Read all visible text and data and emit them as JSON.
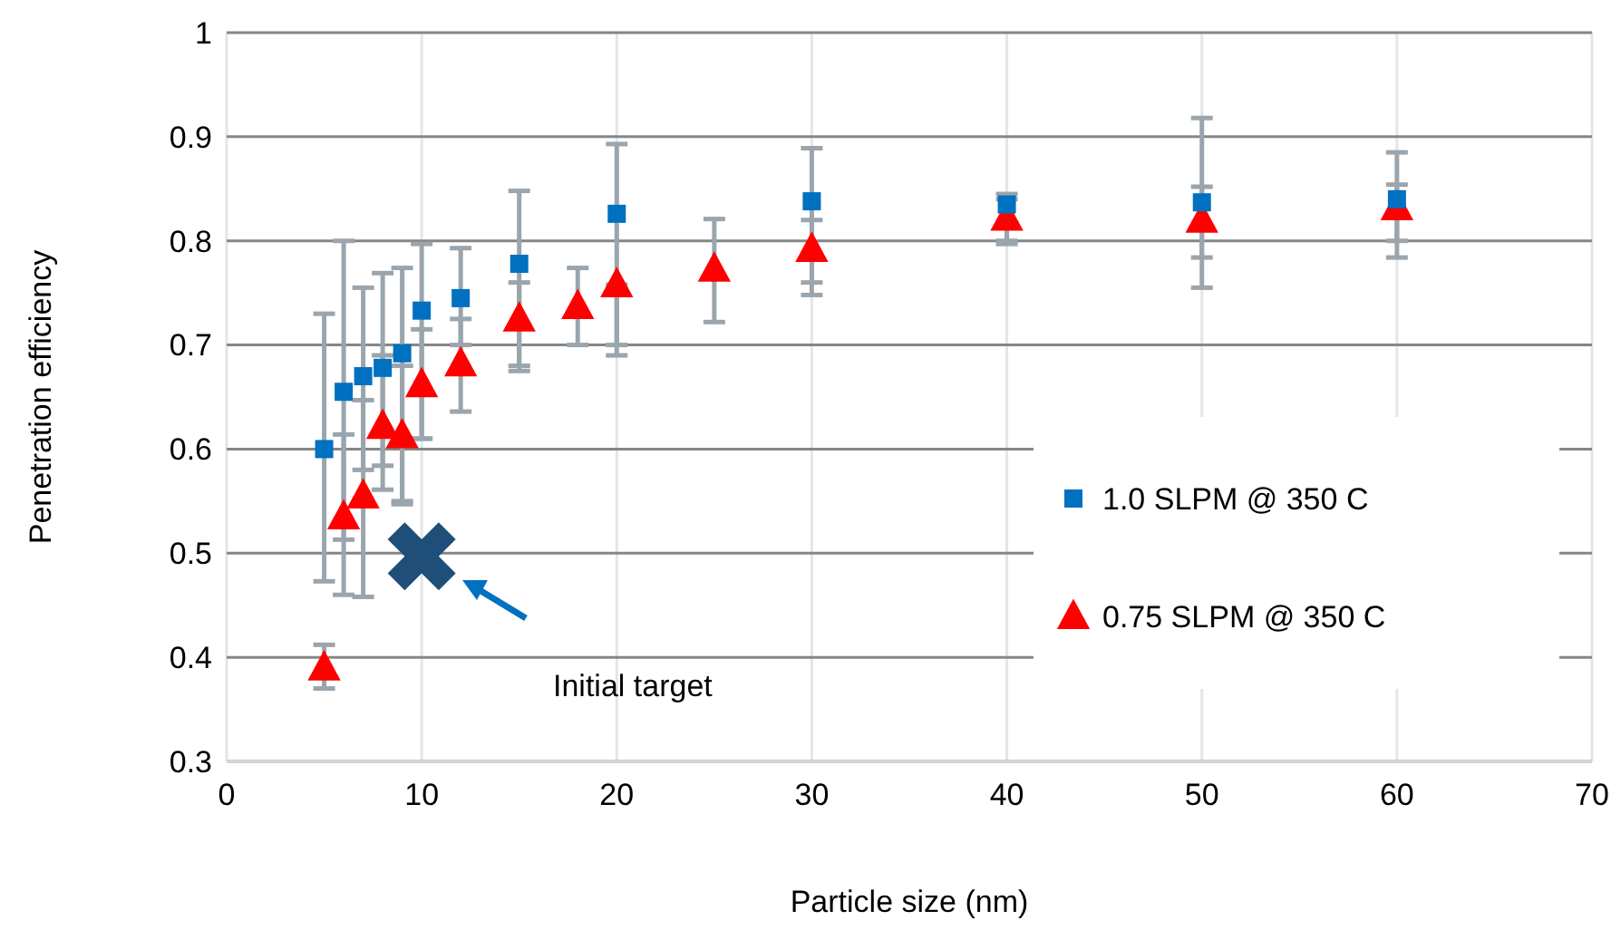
{
  "chart_data": {
    "type": "scatter",
    "xlabel": "Particle size (nm)",
    "ylabel": "Penetration efficiency",
    "xlim": [
      0,
      70
    ],
    "xticks": [
      0,
      10,
      20,
      30,
      40,
      50,
      60,
      70
    ],
    "ylim": [
      0.3,
      1
    ],
    "yticks": [
      {
        "value": 0.3,
        "label": "0.3"
      },
      {
        "value": 0.4,
        "label": "0.4"
      },
      {
        "value": 0.5,
        "label": "0.5"
      },
      {
        "value": 0.6,
        "label": "0.6"
      },
      {
        "value": 0.7,
        "label": "0.7"
      },
      {
        "value": 0.8,
        "label": "0.8"
      },
      {
        "value": 0.9,
        "label": "0.9"
      },
      {
        "value": 1,
        "label": "1"
      }
    ],
    "grid": true,
    "legend": "right",
    "series": [
      {
        "name": "1.0 SLPM @ 350 C",
        "color": "#0070c0",
        "marker": "square",
        "x": [
          5,
          6,
          7,
          8,
          9,
          10,
          12,
          15,
          20,
          30,
          40,
          50,
          60
        ],
        "values": [
          0.6,
          0.655,
          0.67,
          0.678,
          0.692,
          0.733,
          0.745,
          0.778,
          0.826,
          0.838,
          0.835,
          0.837,
          0.84
        ],
        "errors": [
          [
            0.473,
            0.73
          ],
          [
            0.46,
            0.8
          ],
          [
            0.58,
            0.755
          ],
          [
            0.584,
            0.769
          ],
          [
            0.547,
            0.774
          ],
          [
            0.61,
            0.797
          ],
          [
            0.7,
            0.793
          ],
          [
            0.675,
            0.848
          ],
          [
            0.69,
            0.893
          ],
          [
            0.748,
            0.889
          ],
          [
            0.8,
            0.845
          ],
          [
            0.755,
            0.918
          ],
          [
            0.784,
            0.885
          ]
        ]
      },
      {
        "name": "0.75 SLPM @ 350 C",
        "color": "#ff0000",
        "marker": "triangle",
        "x": [
          5,
          6,
          7,
          8,
          9,
          10,
          12,
          15,
          18,
          20,
          25,
          30,
          40,
          50,
          60
        ],
        "values": [
          0.39,
          0.535,
          0.555,
          0.622,
          0.613,
          0.662,
          0.682,
          0.725,
          0.737,
          0.758,
          0.773,
          0.792,
          0.822,
          0.82,
          0.832
        ],
        "errors": [
          [
            0.37,
            0.412
          ],
          [
            0.513,
            0.614
          ],
          [
            0.458,
            0.647
          ],
          [
            0.561,
            0.69
          ],
          [
            0.55,
            0.68
          ],
          [
            0.61,
            0.715
          ],
          [
            0.636,
            0.725
          ],
          [
            0.68,
            0.76
          ],
          [
            0.7,
            0.774
          ],
          [
            0.7,
            0.758
          ],
          [
            0.722,
            0.821
          ],
          [
            0.76,
            0.82
          ],
          [
            0.797,
            0.84
          ],
          [
            0.784,
            0.852
          ],
          [
            0.8,
            0.854
          ]
        ]
      },
      {
        "color": "#1f4e79",
        "marker": "cross",
        "x": [
          10
        ],
        "values": [
          0.497
        ]
      }
    ],
    "annotations": [
      "Initial target"
    ]
  }
}
